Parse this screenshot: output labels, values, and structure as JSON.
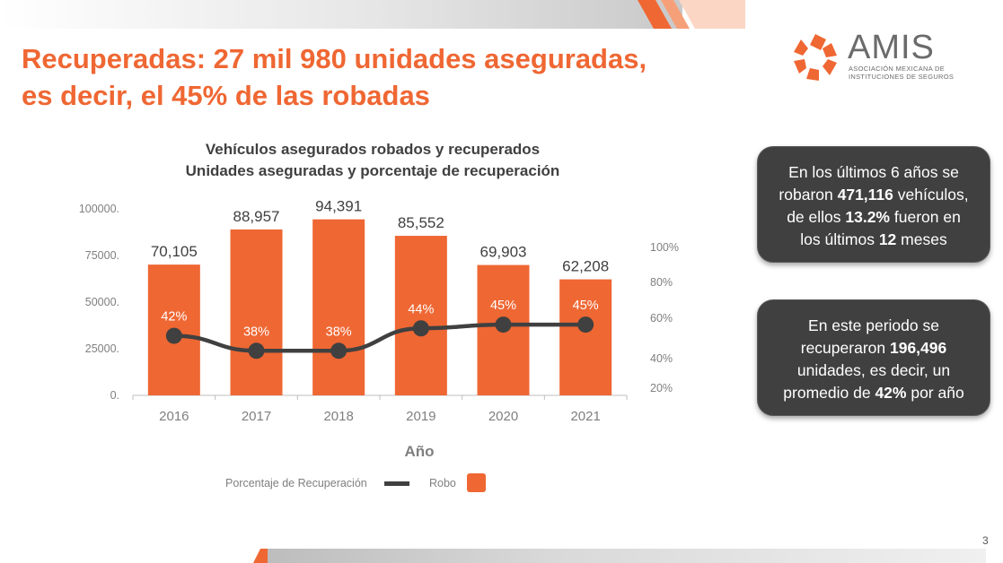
{
  "slide": {
    "title_line1": "Recuperadas: 27 mil 980 unidades aseguradas,",
    "title_line2": "es decir, el 45% de las robadas",
    "page_number": "3"
  },
  "logo": {
    "name": "AMIS",
    "subtitle_line1": "ASOCIACIÓN MEXICANA DE",
    "subtitle_line2": "INSTITUCIONES DE SEGUROS"
  },
  "callouts": [
    {
      "t1": "En los últimos 6 años se",
      "t2": "robaron ",
      "t3": "471,116",
      "t4": "  vehículos,",
      "t5": "de ellos ",
      "t6": "13.2%",
      "t7": " fueron en",
      "t8": "los últimos ",
      "t9": "12",
      "t10": " meses"
    },
    {
      "t1": "En este periodo se",
      "t2": "recuperaron ",
      "t3": "196,496",
      "t4": "unidades, es decir, un",
      "t5": "promedio de ",
      "t6": "42%",
      "t7": " por año"
    }
  ],
  "colors": {
    "accent": "#ef6733",
    "bar": "#ef6733",
    "line": "#404040",
    "callout_bg": "#404040",
    "axis_text": "#7f7f7f"
  },
  "chart_data": {
    "type": "bar",
    "title": "Vehículos asegurados robados y recuperados",
    "subtitle": "Unidades aseguradas y porcentaje de recuperación",
    "xlabel": "Año",
    "categories": [
      "2016",
      "2017",
      "2018",
      "2019",
      "2020",
      "2021"
    ],
    "bar_value_labels": [
      "70,105",
      "88,957",
      "94,391",
      "85,552",
      "69,903",
      "62,208"
    ],
    "line_value_labels": [
      "42%",
      "38%",
      "38%",
      "44%",
      "45%",
      "45%"
    ],
    "series": [
      {
        "name": "Robo",
        "type": "bar",
        "axis": "left",
        "values": [
          70105,
          88957,
          94391,
          85552,
          69903,
          62208
        ]
      },
      {
        "name": "Porcentaje de Recuperación",
        "type": "line",
        "axis": "right",
        "values": [
          42,
          38,
          38,
          44,
          45,
          45
        ]
      }
    ],
    "left_axis": {
      "ylim": [
        0,
        100000
      ],
      "ticks": [
        0,
        25000,
        50000,
        75000,
        100000
      ],
      "tick_labels": [
        "0.",
        "25000.",
        "50000.",
        "75000.",
        "100000."
      ]
    },
    "right_axis": {
      "tick_labels": [
        "100%",
        "80%",
        "60%",
        "40%",
        "20%"
      ]
    },
    "legend": {
      "placement": "bottom",
      "entries": [
        "Porcentaje de Recuperación",
        "Robo"
      ]
    },
    "grid": false
  }
}
